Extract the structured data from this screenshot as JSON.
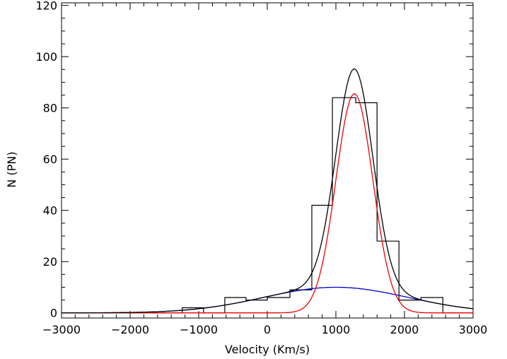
{
  "chart_data": {
    "type": "histogram",
    "xlabel": "Velocity (Km/s)",
    "ylabel": "N (PN)",
    "xlim": [
      -3000,
      3000
    ],
    "ylim": [
      -2,
      121
    ],
    "xticks": [
      -3000,
      -2000,
      -1000,
      0,
      1000,
      2000,
      3000
    ],
    "xtick_labels": [
      "−3000",
      "−2000",
      "−1000",
      "0",
      "1000",
      "2000",
      "3000"
    ],
    "yticks": [
      0,
      20,
      40,
      60,
      80,
      100,
      120
    ],
    "ytick_labels": [
      "0",
      "20",
      "40",
      "60",
      "80",
      "100",
      "120"
    ],
    "grid": false,
    "histogram": {
      "bin_width": 310,
      "bins": [
        {
          "start": -3000,
          "count": 0
        },
        {
          "start": -2690,
          "count": 0
        },
        {
          "start": -2380,
          "count": 0
        },
        {
          "start": -2070,
          "count": 0
        },
        {
          "start": -1760,
          "count": 0
        },
        {
          "start": -1450,
          "count": 0
        },
        {
          "start": -1240,
          "count": 2
        },
        {
          "start": -930,
          "count": 0
        },
        {
          "start": -620,
          "count": 6
        },
        {
          "start": -310,
          "count": 5
        },
        {
          "start": 0,
          "count": 6
        },
        {
          "start": 330,
          "count": 9
        },
        {
          "start": 650,
          "count": 42
        },
        {
          "start": 950,
          "count": 84
        },
        {
          "start": 1290,
          "count": 82
        },
        {
          "start": 1600,
          "count": 28
        },
        {
          "start": 1920,
          "count": 5
        },
        {
          "start": 2240,
          "count": 6
        },
        {
          "start": 2560,
          "count": 0
        }
      ]
    },
    "series": [
      {
        "color": "#0000cc",
        "model": "gaussian",
        "amplitude": 10,
        "mean": 1000,
        "sigma": 1050
      },
      {
        "color": "#ee0000",
        "model": "gaussian",
        "amplitude": 85.5,
        "mean": 1270,
        "sigma": 270
      },
      {
        "color": "#000000",
        "model": "sum",
        "components": [
          0,
          1
        ]
      }
    ]
  }
}
